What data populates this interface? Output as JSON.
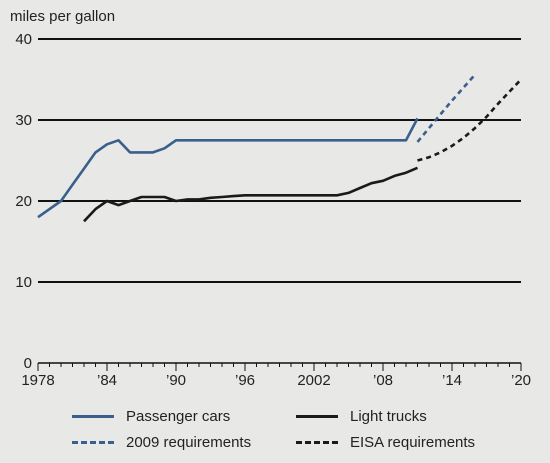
{
  "chart_data": {
    "type": "line",
    "ylabel": "miles per gallon",
    "xlim": [
      1978,
      2020
    ],
    "ylim": [
      0,
      40
    ],
    "yticks": [
      0,
      10,
      20,
      30,
      40
    ],
    "xticks": [
      {
        "value": 1978,
        "label": "1978"
      },
      {
        "value": 1984,
        "label": "’84"
      },
      {
        "value": 1990,
        "label": "’90"
      },
      {
        "value": 1996,
        "label": "’96"
      },
      {
        "value": 2002,
        "label": "2002"
      },
      {
        "value": 2008,
        "label": "’08"
      },
      {
        "value": 2014,
        "label": "’14"
      },
      {
        "value": 2020,
        "label": "’20"
      }
    ],
    "grid": true,
    "legend_position": "bottom",
    "series": [
      {
        "name": "Passenger cars",
        "color": "#3a5f8c",
        "style": "solid",
        "x": [
          1978,
          1980,
          1981,
          1982,
          1983,
          1984,
          1985,
          1986,
          1987,
          1988,
          1989,
          1990,
          1991,
          1992,
          1993,
          1994,
          1995,
          1996,
          1997,
          1998,
          1999,
          2000,
          2001,
          2002,
          2003,
          2004,
          2005,
          2006,
          2007,
          2008,
          2009,
          2010,
          2011
        ],
        "y": [
          18,
          20,
          22,
          24,
          26,
          27,
          27.5,
          26,
          26,
          26,
          26.5,
          27.5,
          27.5,
          27.5,
          27.5,
          27.5,
          27.5,
          27.5,
          27.5,
          27.5,
          27.5,
          27.5,
          27.5,
          27.5,
          27.5,
          27.5,
          27.5,
          27.5,
          27.5,
          27.5,
          27.5,
          27.5,
          30.2
        ]
      },
      {
        "name": "Light trucks",
        "color": "#1a1a1a",
        "style": "solid",
        "x": [
          1982,
          1983,
          1984,
          1985,
          1986,
          1987,
          1988,
          1989,
          1990,
          1991,
          1992,
          1993,
          1994,
          1995,
          1996,
          1997,
          1998,
          1999,
          2000,
          2001,
          2002,
          2003,
          2004,
          2005,
          2006,
          2007,
          2008,
          2009,
          2010,
          2011
        ],
        "y": [
          17.5,
          19,
          20,
          19.5,
          20,
          20.5,
          20.5,
          20.5,
          20,
          20.2,
          20.2,
          20.4,
          20.5,
          20.6,
          20.7,
          20.7,
          20.7,
          20.7,
          20.7,
          20.7,
          20.7,
          20.7,
          20.7,
          21,
          21.6,
          22.2,
          22.5,
          23.1,
          23.5,
          24.1
        ]
      },
      {
        "name": "2009 requirements",
        "color": "#3a5f8c",
        "style": "dashed",
        "x": [
          2011,
          2012,
          2013,
          2014,
          2015,
          2016
        ],
        "y": [
          27.3,
          29.0,
          30.7,
          32.4,
          34.0,
          35.6
        ]
      },
      {
        "name": "EISA requirements",
        "color": "#1a1a1a",
        "style": "dashed",
        "x": [
          2011,
          2012,
          2013,
          2014,
          2015,
          2016,
          2017,
          2018,
          2019,
          2020
        ],
        "y": [
          25.0,
          25.4,
          26.0,
          26.8,
          27.8,
          29.0,
          30.4,
          32.0,
          33.5,
          35.0
        ]
      }
    ]
  },
  "legend": {
    "items": [
      {
        "label": "Passenger cars"
      },
      {
        "label": "Light trucks"
      },
      {
        "label": "2009 requirements"
      },
      {
        "label": "EISA requirements"
      }
    ]
  }
}
